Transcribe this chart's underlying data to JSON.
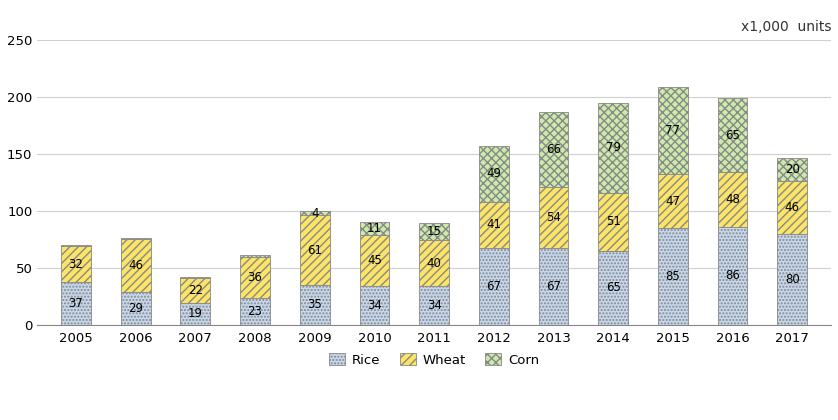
{
  "years": [
    "2005",
    "2006",
    "2007",
    "2008",
    "2009",
    "2010",
    "2011",
    "2012",
    "2013",
    "2014",
    "2015",
    "2016",
    "2017"
  ],
  "rice": [
    37,
    29,
    19,
    23,
    35,
    34,
    34,
    67,
    67,
    65,
    85,
    86,
    80
  ],
  "wheat": [
    32,
    46,
    22,
    36,
    61,
    45,
    40,
    41,
    54,
    51,
    47,
    48,
    46
  ],
  "corn": [
    1,
    1,
    1,
    2,
    4,
    11,
    15,
    49,
    66,
    79,
    77,
    65,
    20
  ],
  "rice_color": "#c5d8ee",
  "wheat_color": "#fce566",
  "corn_color": "#ccebaa",
  "rice_hatch": ".....",
  "wheat_hatch": "////",
  "corn_hatch": "xxxx",
  "ylim": [
    0,
    250
  ],
  "yticks": [
    0,
    50,
    100,
    150,
    200,
    250
  ],
  "unit_label": "x1,000  units",
  "background_color": "#ffffff",
  "grid_color": "#d0d0d0",
  "label_fontsize": 8.5,
  "axis_fontsize": 9.5,
  "bar_width": 0.5,
  "bar_edge_color": "#888888",
  "bar_edge_width": 0.6
}
